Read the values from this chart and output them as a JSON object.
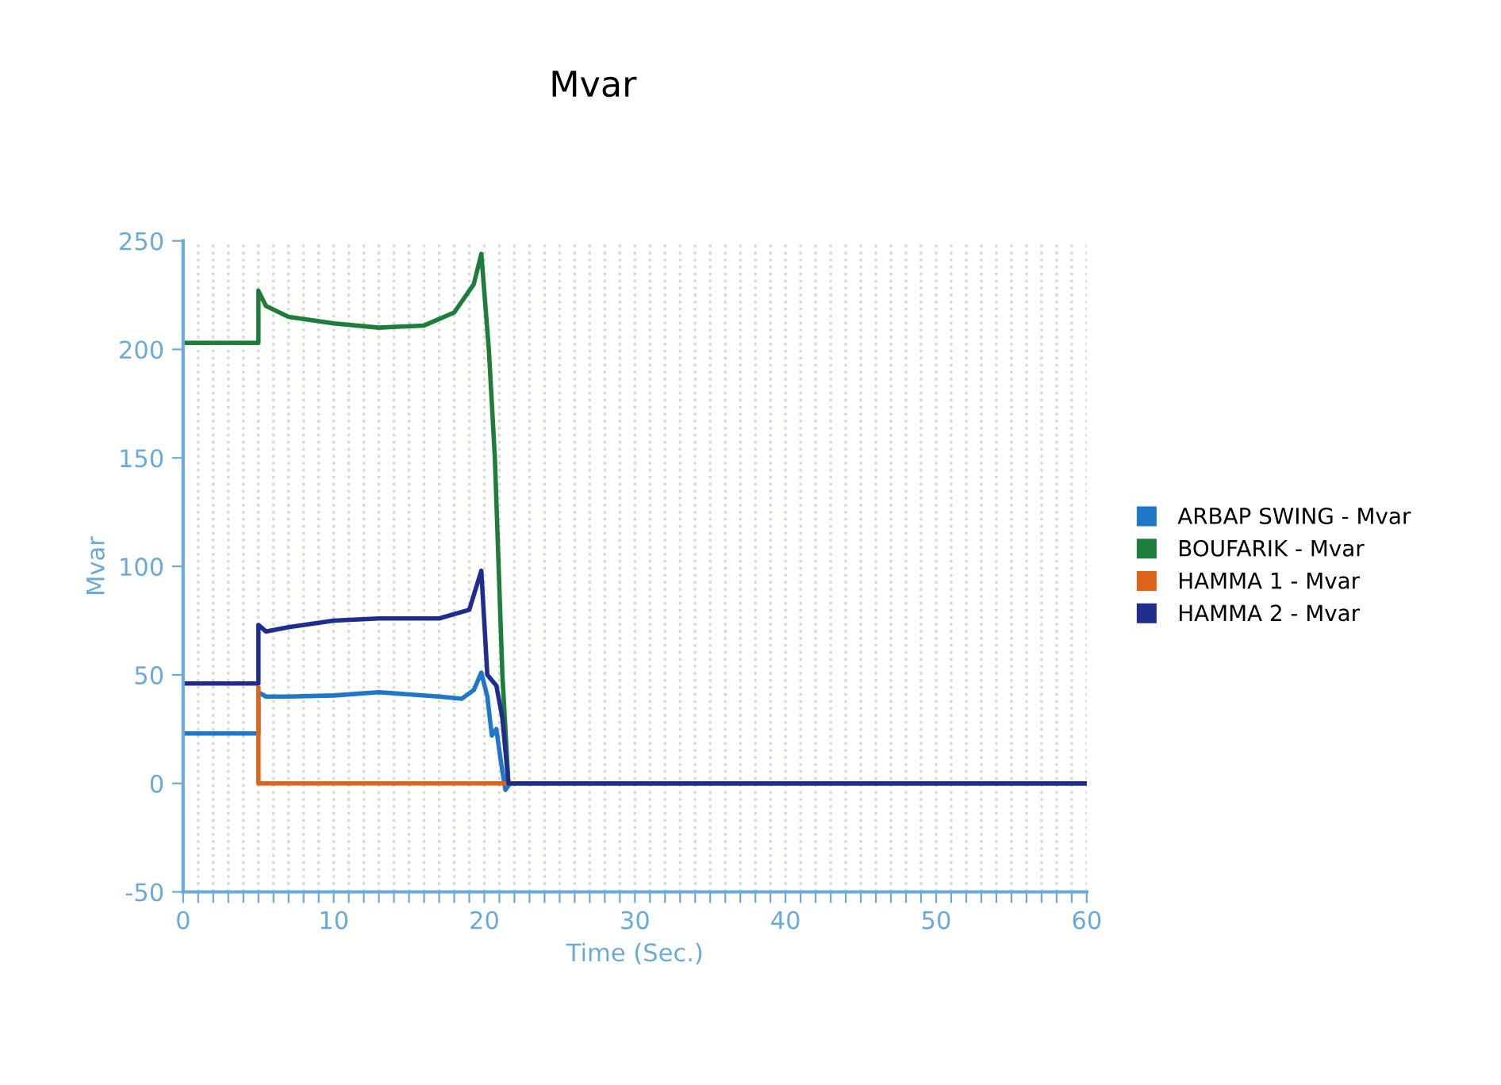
{
  "chart_data": {
    "type": "line",
    "title": "Mvar",
    "xlabel": "Time (Sec.)",
    "ylabel": "Mvar",
    "xlim": [
      0,
      60
    ],
    "ylim": [
      -50,
      250
    ],
    "xticks": [
      0,
      {
        "value": 1,
        "label": null
      },
      {
        "value": 2,
        "label": null
      },
      {
        "value": 3,
        "label": null
      },
      {
        "value": 4,
        "label": null
      },
      {
        "value": 5,
        "label": null
      },
      {
        "value": 6,
        "label": null
      },
      {
        "value": 7,
        "label": null
      },
      {
        "value": 8,
        "label": null
      },
      {
        "value": 9,
        "label": null
      },
      10,
      {
        "value": 11,
        "label": null
      },
      {
        "value": 12,
        "label": null
      },
      {
        "value": 13,
        "label": null
      },
      {
        "value": 14,
        "label": null
      },
      {
        "value": 15,
        "label": null
      },
      {
        "value": 16,
        "label": null
      },
      {
        "value": 17,
        "label": null
      },
      {
        "value": 18,
        "label": null
      },
      {
        "value": 19,
        "label": null
      },
      20,
      {
        "value": 21,
        "label": null
      },
      {
        "value": 22,
        "label": null
      },
      {
        "value": 23,
        "label": null
      },
      {
        "value": 24,
        "label": null
      },
      {
        "value": 25,
        "label": null
      },
      {
        "value": 26,
        "label": null
      },
      {
        "value": 27,
        "label": null
      },
      {
        "value": 28,
        "label": null
      },
      {
        "value": 29,
        "label": null
      },
      30,
      {
        "value": 31,
        "label": null
      },
      {
        "value": 32,
        "label": null
      },
      {
        "value": 33,
        "label": null
      },
      {
        "value": 34,
        "label": null
      },
      {
        "value": 35,
        "label": null
      },
      {
        "value": 36,
        "label": null
      },
      {
        "value": 37,
        "label": null
      },
      {
        "value": 38,
        "label": null
      },
      {
        "value": 39,
        "label": null
      },
      40,
      {
        "value": 41,
        "label": null
      },
      {
        "value": 42,
        "label": null
      },
      {
        "value": 43,
        "label": null
      },
      {
        "value": 44,
        "label": null
      },
      {
        "value": 45,
        "label": null
      },
      {
        "value": 46,
        "label": null
      },
      {
        "value": 47,
        "label": null
      },
      {
        "value": 48,
        "label": null
      },
      {
        "value": 49,
        "label": null
      },
      50,
      {
        "value": 51,
        "label": null
      },
      {
        "value": 52,
        "label": null
      },
      {
        "value": 53,
        "label": null
      },
      {
        "value": 54,
        "label": null
      },
      {
        "value": 55,
        "label": null
      },
      {
        "value": 56,
        "label": null
      },
      {
        "value": 57,
        "label": null
      },
      {
        "value": 58,
        "label": null
      },
      {
        "value": 59,
        "label": null
      },
      60
    ],
    "yticks": [
      -50,
      0,
      50,
      100,
      150,
      200,
      250
    ],
    "grid": "x",
    "legend": "right",
    "marker": "none",
    "line_style": "solid",
    "series": [
      {
        "name": "ARBAP SWING - Mvar",
        "color": "#1f77c8",
        "x": [
          0,
          5,
          5,
          5.5,
          7,
          10,
          13,
          17,
          18.5,
          19.3,
          19.8,
          20.2,
          20.5,
          20.8,
          21.1,
          21.4,
          21.7
        ],
        "values": [
          23,
          23,
          42,
          40,
          40,
          40.5,
          42,
          40,
          39,
          43,
          51,
          40,
          22,
          25,
          10,
          -3,
          0
        ]
      },
      {
        "name": "BOUFARIK - Mvar",
        "color": "#1e7d3a",
        "x": [
          0,
          5,
          5,
          5.5,
          7,
          10,
          13,
          16,
          18,
          19.3,
          19.8,
          20.3,
          20.7,
          21.2,
          21.6,
          60
        ],
        "values": [
          203,
          203,
          227,
          220,
          215,
          212,
          210,
          211,
          217,
          230,
          244,
          200,
          150,
          50,
          0,
          0
        ]
      },
      {
        "name": "HAMMA 1 - Mvar",
        "color": "#e0631a",
        "x": [
          5,
          5,
          21.4
        ],
        "values": [
          44,
          0,
          0
        ]
      },
      {
        "name": "HAMMA 2 - Mvar",
        "color": "#1f2d8f",
        "x": [
          0,
          5,
          5,
          5.5,
          7,
          10,
          13,
          17,
          19,
          19.8,
          20.2,
          20.8,
          21.2,
          21.6,
          60
        ],
        "values": [
          46,
          46,
          73,
          70,
          72,
          75,
          76,
          76,
          80,
          98,
          50,
          45,
          30,
          0,
          0
        ]
      }
    ]
  }
}
